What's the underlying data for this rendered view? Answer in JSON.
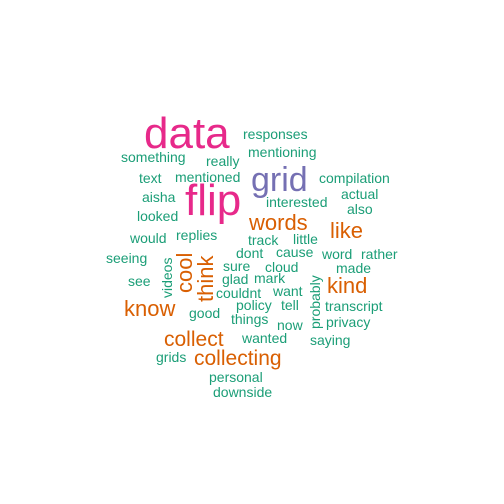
{
  "palette": {
    "magenta": "#e7298a",
    "purple": "#7570b3",
    "orange": "#d95f02",
    "green": "#1b9e77"
  },
  "words": [
    {
      "text": "data",
      "color": "magenta"
    },
    {
      "text": "flip",
      "color": "magenta"
    },
    {
      "text": "grid",
      "color": "purple"
    },
    {
      "text": "words",
      "color": "orange"
    },
    {
      "text": "like",
      "color": "orange"
    },
    {
      "text": "kind",
      "color": "orange"
    },
    {
      "text": "know",
      "color": "orange"
    },
    {
      "text": "cool",
      "color": "orange"
    },
    {
      "text": "think",
      "color": "orange"
    },
    {
      "text": "collect",
      "color": "orange"
    },
    {
      "text": "collecting",
      "color": "orange"
    },
    {
      "text": "responses",
      "color": "green"
    },
    {
      "text": "mentioning",
      "color": "green"
    },
    {
      "text": "something",
      "color": "green"
    },
    {
      "text": "really",
      "color": "green"
    },
    {
      "text": "text",
      "color": "green"
    },
    {
      "text": "mentioned",
      "color": "green"
    },
    {
      "text": "compilation",
      "color": "green"
    },
    {
      "text": "aisha",
      "color": "green"
    },
    {
      "text": "actual",
      "color": "green"
    },
    {
      "text": "interested",
      "color": "green"
    },
    {
      "text": "also",
      "color": "green"
    },
    {
      "text": "looked",
      "color": "green"
    },
    {
      "text": "would",
      "color": "green"
    },
    {
      "text": "replies",
      "color": "green"
    },
    {
      "text": "track",
      "color": "green"
    },
    {
      "text": "little",
      "color": "green"
    },
    {
      "text": "seeing",
      "color": "green"
    },
    {
      "text": "dont",
      "color": "green"
    },
    {
      "text": "cause",
      "color": "green"
    },
    {
      "text": "word",
      "color": "green"
    },
    {
      "text": "rather",
      "color": "green"
    },
    {
      "text": "sure",
      "color": "green"
    },
    {
      "text": "cloud",
      "color": "green"
    },
    {
      "text": "made",
      "color": "green"
    },
    {
      "text": "videos",
      "color": "green"
    },
    {
      "text": "see",
      "color": "green"
    },
    {
      "text": "glad",
      "color": "green"
    },
    {
      "text": "mark",
      "color": "green"
    },
    {
      "text": "want",
      "color": "green"
    },
    {
      "text": "probably",
      "color": "green"
    },
    {
      "text": "couldnt",
      "color": "green"
    },
    {
      "text": "policy",
      "color": "green"
    },
    {
      "text": "tell",
      "color": "green"
    },
    {
      "text": "transcript",
      "color": "green"
    },
    {
      "text": "good",
      "color": "green"
    },
    {
      "text": "things",
      "color": "green"
    },
    {
      "text": "now",
      "color": "green"
    },
    {
      "text": "privacy",
      "color": "green"
    },
    {
      "text": "wanted",
      "color": "green"
    },
    {
      "text": "saying",
      "color": "green"
    },
    {
      "text": "grids",
      "color": "green"
    },
    {
      "text": "personal",
      "color": "green"
    },
    {
      "text": "downside",
      "color": "green"
    }
  ]
}
